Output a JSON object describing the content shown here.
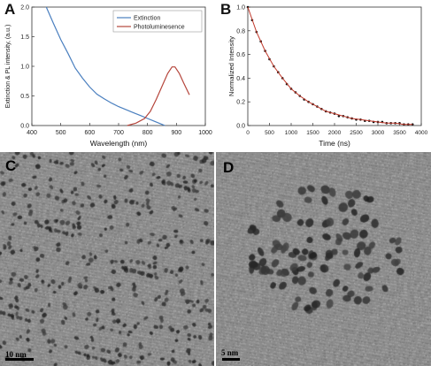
{
  "panels": {
    "a": {
      "label": "A"
    },
    "b": {
      "label": "B"
    },
    "c": {
      "label": "C",
      "scale_bar": "10 nm"
    },
    "d": {
      "label": "D",
      "scale_bar": "5 nm"
    }
  },
  "chart_data": [
    {
      "type": "line",
      "panel": "A",
      "xlabel": "Wavelength (nm)",
      "ylabel": "Extinction & PL intensity, (a.u.)",
      "xlim": [
        400,
        1000
      ],
      "ylim": [
        0,
        2.0
      ],
      "x_ticks": [
        400,
        500,
        600,
        700,
        800,
        900,
        1000
      ],
      "y_ticks": [
        0.0,
        0.5,
        1.0,
        1.5,
        2.0
      ],
      "legend_position": "top-right",
      "series": [
        {
          "name": "Extinction",
          "color": "#4a7fbf",
          "x": [
            450,
            475,
            500,
            525,
            550,
            575,
            600,
            625,
            650,
            675,
            700,
            725,
            750,
            775,
            800,
            825,
            850,
            860
          ],
          "y": [
            2.0,
            1.72,
            1.45,
            1.22,
            0.97,
            0.8,
            0.65,
            0.53,
            0.45,
            0.38,
            0.32,
            0.27,
            0.22,
            0.17,
            0.12,
            0.07,
            0.02,
            0.0
          ]
        },
        {
          "name": "Photoluminesence",
          "color": "#b5453b",
          "x": [
            730,
            760,
            790,
            810,
            830,
            850,
            870,
            885,
            895,
            910,
            925,
            945
          ],
          "y": [
            0.0,
            0.04,
            0.12,
            0.24,
            0.44,
            0.66,
            0.88,
            0.99,
            0.99,
            0.88,
            0.72,
            0.52
          ]
        }
      ]
    },
    {
      "type": "scatter",
      "panel": "B",
      "xlabel": "Time (ns)",
      "ylabel": "Normalized Intensity",
      "xlim": [
        0,
        4000
      ],
      "ylim": [
        0,
        1.0
      ],
      "x_ticks": [
        0,
        500,
        1000,
        1500,
        2000,
        2500,
        3000,
        3500,
        4000
      ],
      "y_ticks": [
        0.0,
        0.2,
        0.4,
        0.6,
        0.8,
        1.0
      ],
      "series": [
        {
          "kind": "scatter",
          "color": "#111111",
          "x": [
            0,
            100,
            200,
            300,
            400,
            500,
            600,
            700,
            800,
            900,
            1000,
            1100,
            1200,
            1300,
            1400,
            1500,
            1600,
            1700,
            1800,
            1900,
            2000,
            2100,
            2200,
            2300,
            2400,
            2500,
            2600,
            2700,
            2800,
            2900,
            3000,
            3100,
            3200,
            3300,
            3400,
            3500,
            3600,
            3700,
            3800
          ],
          "y": [
            1.0,
            0.89,
            0.79,
            0.71,
            0.63,
            0.56,
            0.5,
            0.45,
            0.4,
            0.35,
            0.31,
            0.28,
            0.25,
            0.22,
            0.2,
            0.18,
            0.16,
            0.14,
            0.12,
            0.11,
            0.1,
            0.08,
            0.08,
            0.07,
            0.06,
            0.05,
            0.05,
            0.04,
            0.04,
            0.03,
            0.03,
            0.03,
            0.02,
            0.02,
            0.02,
            0.02,
            0.01,
            0.01,
            0.01
          ]
        },
        {
          "kind": "fit",
          "color": "#c0392b",
          "x": [
            0,
            200,
            400,
            600,
            800,
            1000,
            1200,
            1400,
            1600,
            1800,
            2000,
            2200,
            2400,
            2600,
            2800,
            3000,
            3200,
            3400,
            3600,
            3800
          ],
          "y": [
            1.0,
            0.79,
            0.63,
            0.5,
            0.4,
            0.31,
            0.25,
            0.2,
            0.16,
            0.12,
            0.1,
            0.08,
            0.06,
            0.05,
            0.04,
            0.03,
            0.02,
            0.02,
            0.01,
            0.01
          ]
        }
      ]
    }
  ]
}
